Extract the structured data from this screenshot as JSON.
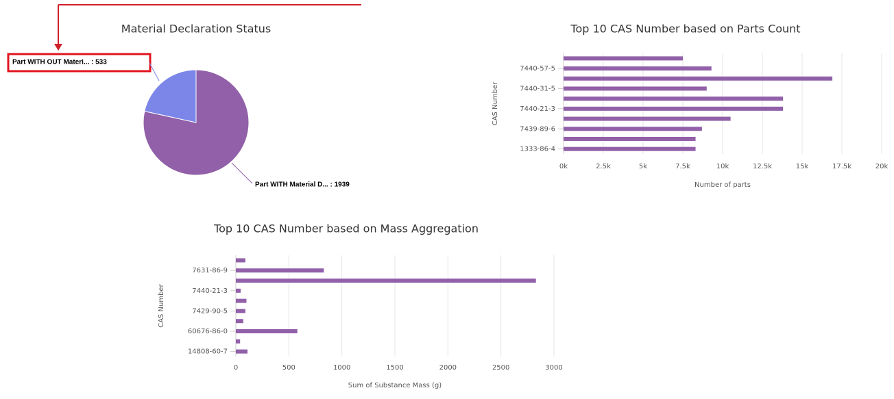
{
  "chart_data": [
    {
      "type": "pie",
      "title": "Material Declaration Status",
      "categories": [
        "Part WITH OUT Materi...",
        "Part WITH Material D..."
      ],
      "values": [
        533,
        1939
      ],
      "value_labels": [
        "Part WITH OUT Materi... : 533",
        "Part WITH Material D... : 1939"
      ],
      "colors": [
        "#7b86e8",
        "#9160a8"
      ]
    },
    {
      "type": "hbar",
      "title": "Top 10 CAS Number based on Parts Count",
      "categories": [
        null,
        "7440-57-5",
        null,
        "7440-31-5",
        null,
        "7440-21-3",
        null,
        "7439-89-6",
        null,
        "1333-86-4"
      ],
      "values": [
        7500,
        9300,
        16900,
        9000,
        13800,
        13800,
        10500,
        8700,
        8300,
        8300
      ],
      "color": "#9160a8",
      "xlabel": "Number of parts",
      "ylabel": "CAS Number",
      "xlim": [
        0,
        20000
      ],
      "xticks": [
        {
          "value": 0,
          "label": "0k"
        },
        {
          "value": 2500,
          "label": "2.5k"
        },
        {
          "value": 5000,
          "label": "5k"
        },
        {
          "value": 7500,
          "label": "7.5k"
        },
        {
          "value": 10000,
          "label": "10k"
        },
        {
          "value": 12500,
          "label": "12.5k"
        },
        {
          "value": 15000,
          "label": "15k"
        },
        {
          "value": 17500,
          "label": "17.5k"
        },
        {
          "value": 20000,
          "label": "20k"
        }
      ],
      "grid": true
    },
    {
      "type": "hbar",
      "title": "Top 10 CAS Number based on Mass Aggregation",
      "categories": [
        null,
        "7631-86-9",
        null,
        "7440-21-3",
        null,
        "7429-90-5",
        null,
        "60676-86-0",
        null,
        "14808-60-7"
      ],
      "values": [
        90,
        830,
        2830,
        45,
        100,
        90,
        70,
        580,
        40,
        110
      ],
      "color": "#9160a8",
      "xlabel": "Sum of Substance Mass (g)",
      "ylabel": "CAS Number",
      "xlim": [
        0,
        3000
      ],
      "xticks": [
        0,
        500,
        1000,
        1500,
        2000,
        2500,
        3000
      ],
      "grid": true
    }
  ]
}
